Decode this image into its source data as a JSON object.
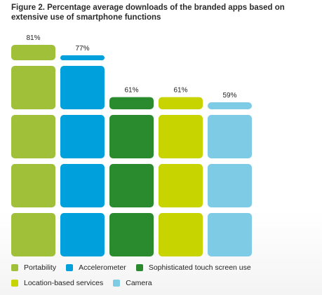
{
  "title": "Figure 2. Percentage average downloads of the branded apps based on extensive use of smartphone functions",
  "chart_data": {
    "type": "bar",
    "title": "Figure 2. Percentage average downloads of the branded apps based on extensive use of smartphone functions",
    "categories": [
      "Portability",
      "Accelerometer",
      "Sophisticated touch screen use",
      "Location-based services",
      "Camera"
    ],
    "values": [
      81,
      77,
      61,
      61,
      59
    ],
    "value_labels": [
      "81%",
      "77%",
      "61%",
      "61%",
      "59%"
    ],
    "colors": [
      "#a1c03a",
      "#00a0dc",
      "#2a8a2e",
      "#c8d400",
      "#7ecbe6"
    ],
    "ylim": [
      0,
      81
    ],
    "grid": false,
    "legend_position": "bottom",
    "legend": [
      {
        "label": "Portability",
        "color": "#a1c03a"
      },
      {
        "label": "Accelerometer",
        "color": "#00a0dc"
      },
      {
        "label": "Sophisticated touch screen use",
        "color": "#2a8a2e"
      },
      {
        "label": "Location-based services",
        "color": "#c8d400"
      },
      {
        "label": "Camera",
        "color": "#7ecbe6"
      }
    ]
  }
}
